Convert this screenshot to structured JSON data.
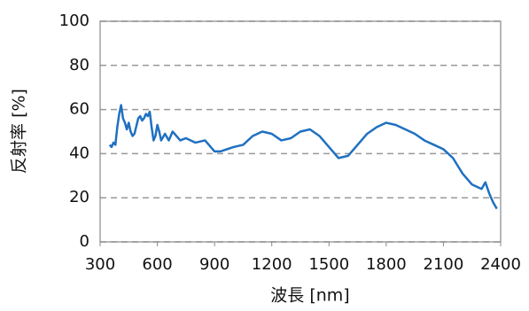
{
  "chart_data": {
    "type": "line",
    "x_label": "波長 [nm]",
    "y_label": "反射率 [%]",
    "x": [
      350,
      360,
      370,
      380,
      390,
      400,
      410,
      420,
      430,
      440,
      450,
      460,
      470,
      480,
      500,
      510,
      520,
      530,
      540,
      550,
      560,
      570,
      580,
      590,
      600,
      610,
      620,
      640,
      660,
      680,
      700,
      720,
      750,
      800,
      850,
      880,
      900,
      930,
      1000,
      1050,
      1100,
      1150,
      1200,
      1250,
      1300,
      1350,
      1400,
      1450,
      1500,
      1550,
      1600,
      1650,
      1700,
      1750,
      1800,
      1850,
      1900,
      1950,
      2000,
      2050,
      2100,
      2150,
      2200,
      2250,
      2300,
      2320,
      2340,
      2360,
      2380
    ],
    "series": [
      {
        "color": "#1f70c1",
        "values": [
          44,
          43,
          45,
          44,
          52,
          58,
          62,
          56,
          54,
          51,
          54,
          50,
          48,
          49,
          56,
          57,
          55,
          56,
          58,
          57,
          59,
          52,
          46,
          48,
          53,
          50,
          46,
          49,
          46,
          50,
          48,
          46,
          47,
          45,
          46,
          43,
          41,
          41,
          43,
          44,
          48,
          50,
          49,
          46,
          47,
          50,
          51,
          48,
          43,
          38,
          39,
          44,
          49,
          52,
          54,
          53,
          51,
          49,
          46,
          44,
          42,
          38,
          31,
          26,
          24,
          27,
          22,
          18,
          15
        ]
      }
    ],
    "xlim": [
      300,
      2400
    ],
    "xticks": [
      300,
      600,
      900,
      1200,
      1500,
      1800,
      2100,
      2400
    ],
    "ylim": [
      0,
      100
    ],
    "yticks": [
      0,
      20,
      40,
      60,
      80,
      100
    ],
    "grid": true
  }
}
